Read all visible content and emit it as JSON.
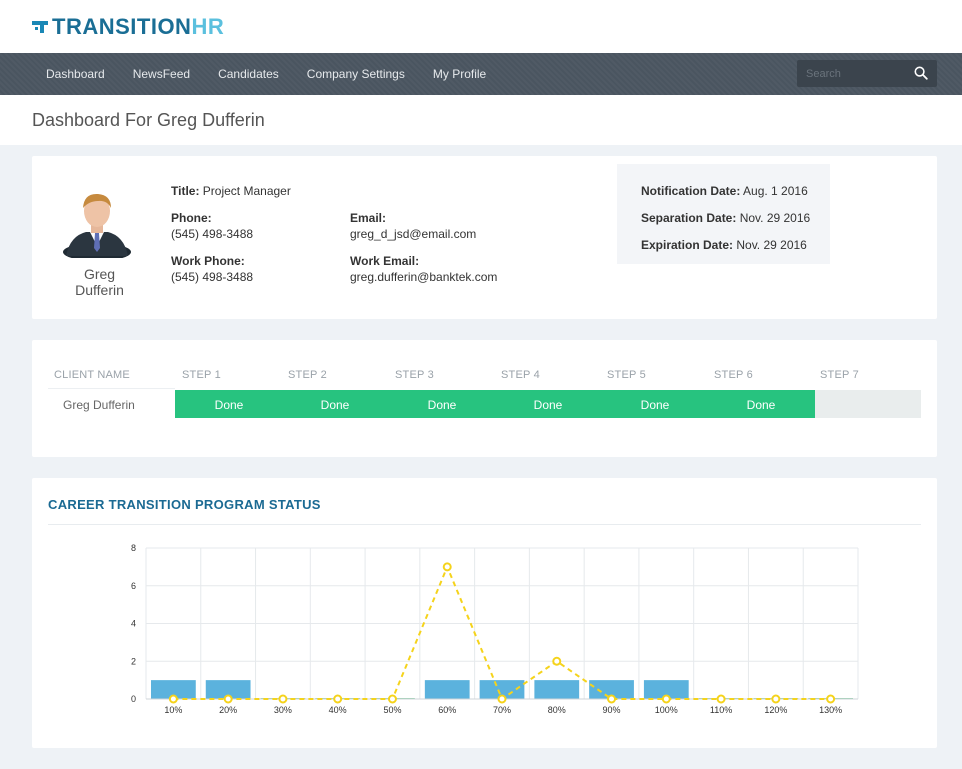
{
  "app": {
    "logo_part1": "TRANSITION",
    "logo_part2": "HR",
    "brand_color": "#1a6e95",
    "brand_accent": "#5bc0de"
  },
  "nav": {
    "items": [
      "Dashboard",
      "NewsFeed",
      "Candidates",
      "Company Settings",
      "My Profile"
    ],
    "search_placeholder": "Search",
    "search_icon": "search-icon"
  },
  "page": {
    "title": "Dashboard For Greg Dufferin"
  },
  "profile": {
    "name_first": "Greg",
    "name_last": "Dufferin",
    "title_label": "Title:",
    "title_value": "Project Manager",
    "phone_label": "Phone:",
    "phone_value": "(545) 498-3488",
    "work_phone_label": "Work Phone:",
    "work_phone_value": "(545) 498-3488",
    "email_label": "Email:",
    "email_value": "greg_d_jsd@email.com",
    "work_email_label": "Work Email:",
    "work_email_value": "greg.dufferin@banktek.com",
    "notification_label": "Notification Date:",
    "notification_value": "Aug. 1 2016",
    "separation_label": "Separation Date:",
    "separation_value": "Nov. 29 2016",
    "expiration_label": "Expiration Date:",
    "expiration_value": "Nov. 29 2016"
  },
  "steps": {
    "headers": [
      "CLIENT NAME",
      "STEP 1",
      "STEP 2",
      "STEP 3",
      "STEP 4",
      "STEP 5",
      "STEP 6",
      "STEP 7"
    ],
    "client": "Greg Dufferin",
    "statuses": [
      "Done",
      "Done",
      "Done",
      "Done",
      "Done",
      "Done",
      ""
    ],
    "done_color": "#27c37f",
    "pending_color": "#e9eded"
  },
  "chart": {
    "title": "CAREER TRANSITION PROGRAM STATUS"
  },
  "chart_data": {
    "type": "bar",
    "categories": [
      "10%",
      "20%",
      "30%",
      "40%",
      "50%",
      "60%",
      "70%",
      "80%",
      "90%",
      "100%",
      "110%",
      "120%",
      "130%"
    ],
    "series": [
      {
        "type": "bar",
        "values": [
          1,
          1,
          0,
          0,
          0,
          1,
          1,
          1,
          1,
          1,
          0,
          0,
          0
        ],
        "color": "#5bb2dd"
      },
      {
        "type": "line",
        "style": "dashed",
        "values": [
          0,
          0,
          0,
          0,
          0,
          7,
          0,
          2,
          0,
          0,
          0,
          0,
          0
        ],
        "color": "#f5d31b"
      }
    ],
    "ylim": [
      0,
      8
    ],
    "yticks": [
      "0",
      "2",
      "4",
      "6",
      "8"
    ],
    "grid": true
  }
}
